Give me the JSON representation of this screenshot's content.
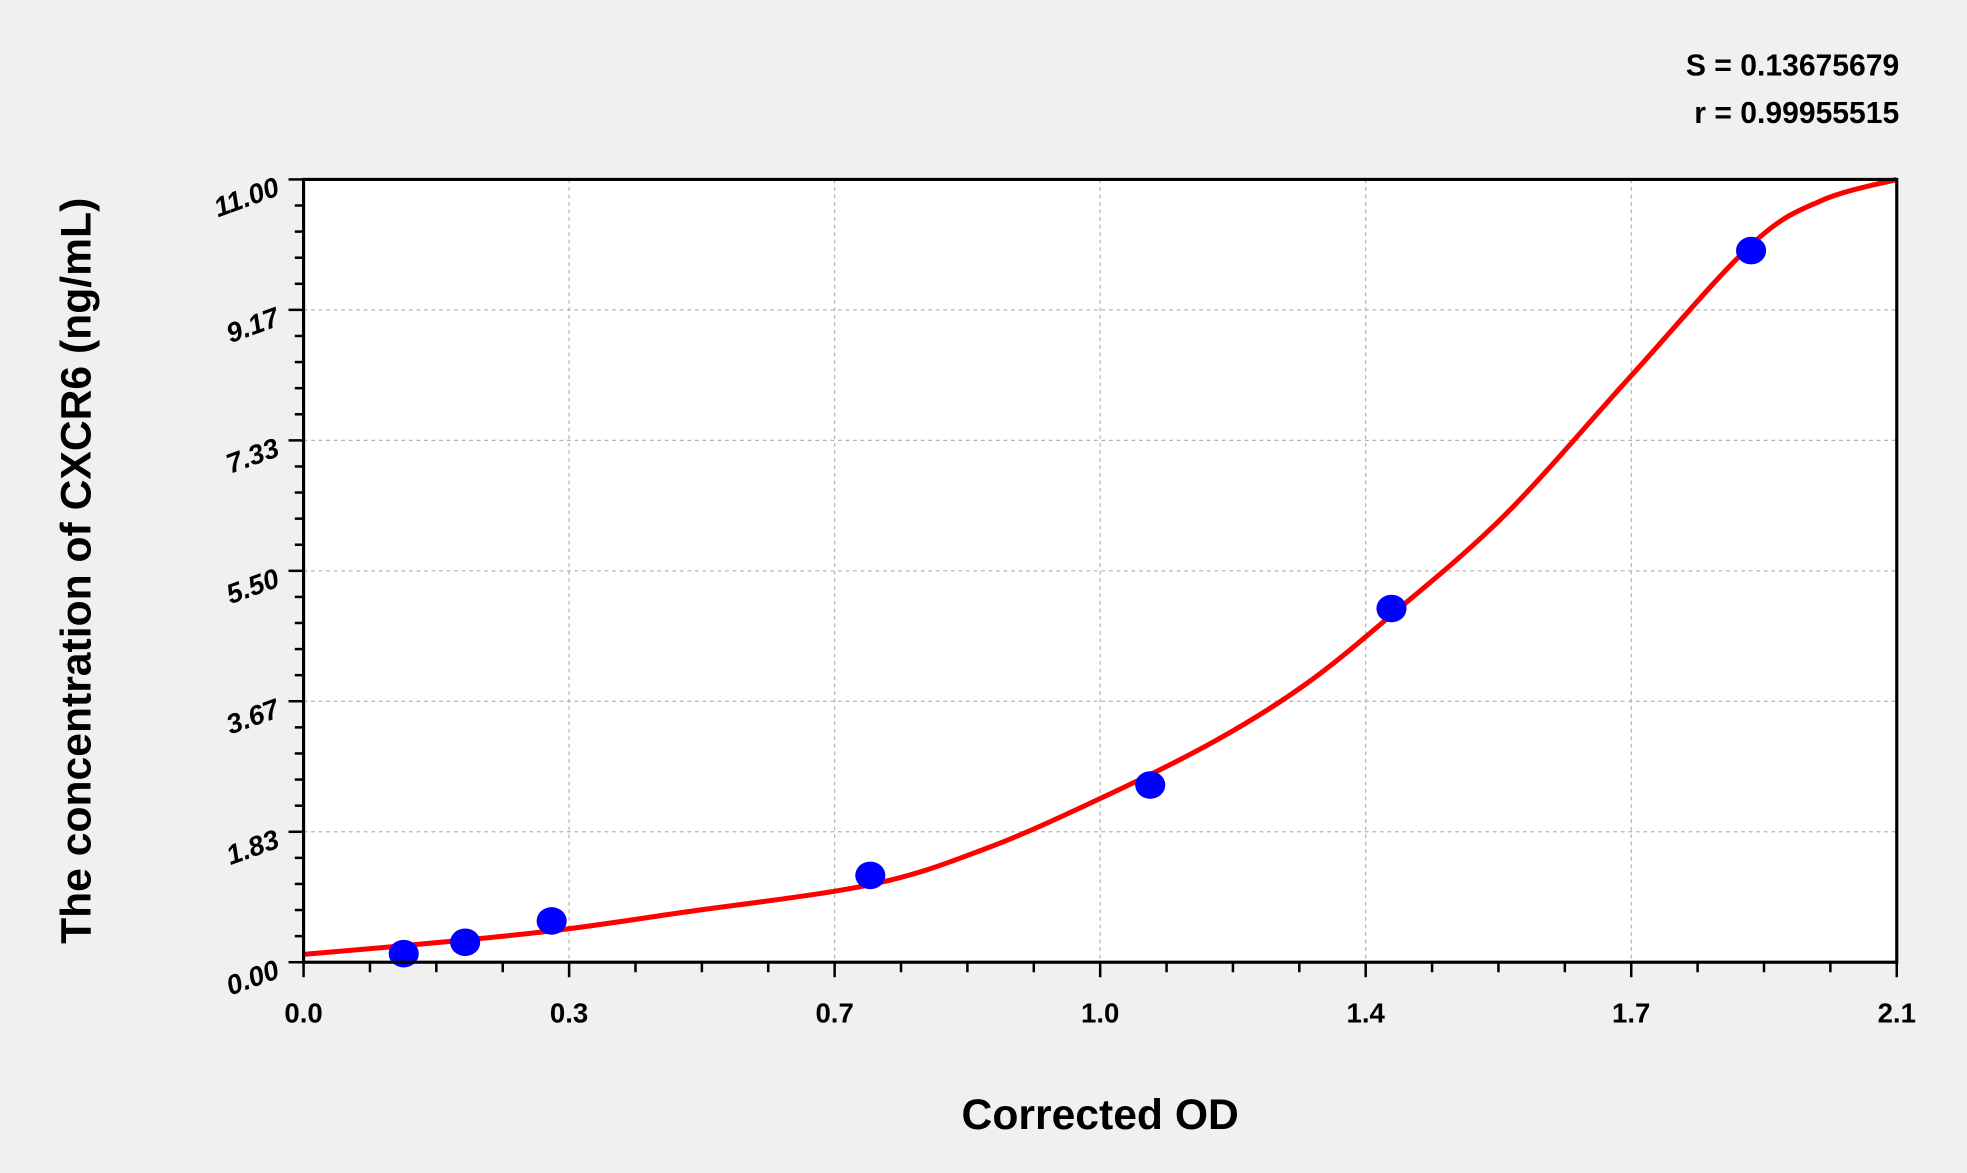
{
  "chart_data": {
    "type": "scatter",
    "title": "",
    "xlabel": "Corrected OD",
    "ylabel": "The concentration of CXCR6 (ng/mL)",
    "xlim": [
      0,
      2.1
    ],
    "ylim": [
      0,
      11
    ],
    "x_ticks": [
      0,
      0.35,
      0.7,
      1.05,
      1.4,
      1.75,
      2.1
    ],
    "x_tick_labels": [
      "0.0",
      "0.3",
      "0.7",
      "1.0",
      "1.4",
      "1.7",
      "2.1"
    ],
    "y_ticks": [
      0,
      1.833,
      3.667,
      5.5,
      7.333,
      9.167,
      11
    ],
    "y_tick_labels": [
      "0.00",
      "1.83",
      "3.67",
      "5.50",
      "7.33",
      "9.17",
      "11.00"
    ],
    "grid": true,
    "annotations": [
      "S = 0.13675679",
      "r = 0.99955515"
    ],
    "series": [
      {
        "type": "scatter",
        "color": "#0000ff",
        "x": [
          0.132,
          0.213,
          0.327,
          0.747,
          1.116,
          1.434,
          1.908
        ],
        "y": [
          0.12,
          0.28,
          0.58,
          1.22,
          2.49,
          4.97,
          10.0
        ]
      },
      {
        "type": "line",
        "color": "#ff0000",
        "x": [
          0,
          0.15,
          0.327,
          0.5,
          0.747,
          0.9,
          1.05,
          1.2,
          1.32,
          1.434,
          1.584,
          1.749,
          1.908,
          2.0,
          2.1
        ],
        "y": [
          0.11,
          0.25,
          0.44,
          0.7,
          1.09,
          1.6,
          2.3,
          3.1,
          3.9,
          4.88,
          6.29,
          8.23,
          10.08,
          10.7,
          11.0
        ]
      }
    ]
  }
}
